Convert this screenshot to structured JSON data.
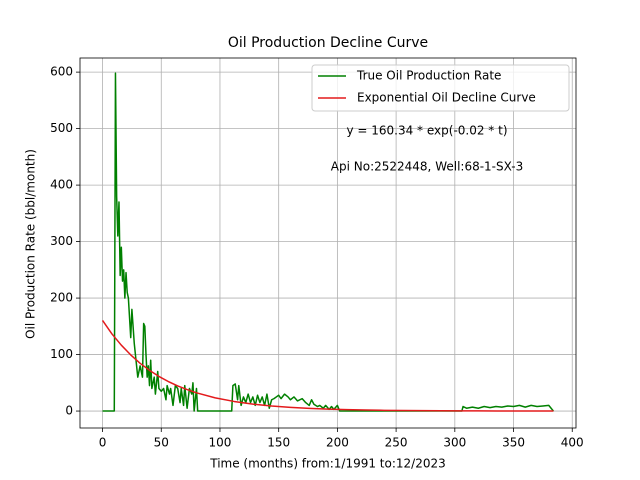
{
  "chart_data": {
    "type": "line",
    "title": "Oil Production Decline Curve",
    "xlabel": "Time (months) from:1/1991 to:12/2023",
    "ylabel": "Oil Production Rate (bbl/month)",
    "annotations": [
      "y = 160.34 * exp(-0.02 * t)",
      "Api No:2522448, Well:68-1-SX-3"
    ],
    "xlim": [
      -19.2,
      403.2
    ],
    "ylim": [
      -30,
      625
    ],
    "xticks": [
      0,
      50,
      100,
      150,
      200,
      250,
      300,
      350,
      400
    ],
    "yticks": [
      0,
      100,
      200,
      300,
      400,
      500,
      600
    ],
    "grid": true,
    "legend": "upper right",
    "series": [
      {
        "name": "True Oil Production Rate",
        "color": "#008000",
        "x": [
          0,
          10,
          11,
          12,
          13,
          14,
          15,
          16,
          17,
          18,
          19,
          20,
          21,
          22,
          24,
          25,
          26,
          27,
          28,
          30,
          32,
          34,
          35,
          36,
          37,
          38,
          39,
          40,
          41,
          42,
          44,
          45,
          47,
          48,
          50,
          52,
          54,
          55,
          57,
          58,
          60,
          62,
          64,
          66,
          67,
          69,
          70,
          72,
          74,
          76,
          77,
          78,
          80,
          81,
          110,
          111,
          113,
          115,
          116,
          118,
          120,
          122,
          124,
          126,
          128,
          130,
          132,
          134,
          136,
          138,
          140,
          142,
          144,
          146,
          148,
          150,
          152,
          155,
          158,
          160,
          163,
          166,
          170,
          173,
          176,
          178,
          180,
          183,
          185,
          188,
          190,
          193,
          195,
          197,
          200,
          202,
          306,
          307,
          310,
          315,
          320,
          325,
          330,
          335,
          340,
          345,
          350,
          355,
          360,
          365,
          370,
          375,
          380,
          382,
          384
        ],
        "values": [
          0,
          0,
          598,
          380,
          310,
          370,
          240,
          290,
          230,
          250,
          200,
          245,
          210,
          200,
          130,
          180,
          150,
          120,
          100,
          60,
          80,
          60,
          155,
          150,
          100,
          60,
          80,
          45,
          90,
          40,
          60,
          30,
          70,
          40,
          35,
          40,
          20,
          45,
          30,
          40,
          10,
          45,
          40,
          15,
          40,
          10,
          45,
          5,
          40,
          30,
          50,
          0,
          40,
          0,
          0,
          45,
          48,
          20,
          45,
          10,
          25,
          15,
          30,
          15,
          25,
          10,
          28,
          15,
          25,
          10,
          30,
          5,
          20,
          22,
          25,
          28,
          22,
          30,
          25,
          20,
          25,
          18,
          22,
          15,
          10,
          20,
          12,
          8,
          10,
          5,
          10,
          3,
          8,
          3,
          10,
          0,
          0,
          8,
          5,
          7,
          5,
          8,
          6,
          8,
          7,
          9,
          8,
          10,
          7,
          10,
          8,
          9,
          10,
          5,
          0
        ]
      },
      {
        "name": "Exponential Oil Decline Curve",
        "color": "#e31a1c",
        "x": [
          0,
          8,
          16,
          24,
          32,
          40,
          48,
          56,
          64,
          72,
          80,
          96,
          112,
          128,
          144,
          160,
          176,
          192,
          208,
          224,
          240,
          256,
          272,
          288,
          304,
          320,
          336,
          352,
          368,
          384
        ],
        "values": [
          160.34,
          136.5,
          116.6,
          99.4,
          84.5,
          72.1,
          61.3,
          52.3,
          44.5,
          38.0,
          32.3,
          23.4,
          17.0,
          12.3,
          8.9,
          6.5,
          4.7,
          3.4,
          2.5,
          1.8,
          1.3,
          0.96,
          0.69,
          0.5,
          0.36,
          0.27,
          0.19,
          0.14,
          0.1,
          0.07
        ]
      }
    ]
  }
}
